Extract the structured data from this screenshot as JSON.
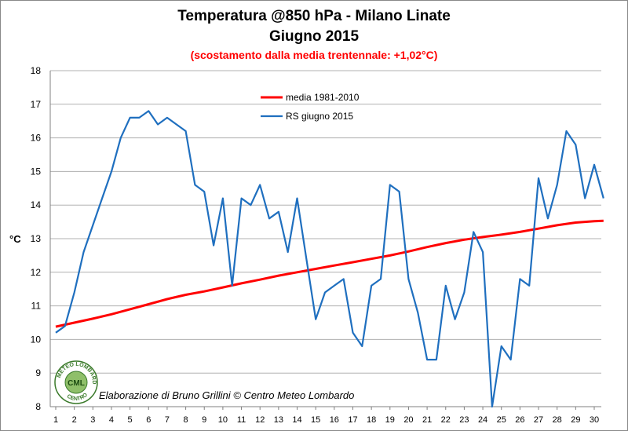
{
  "title_line1": "Temperatura @850 hPa - Milano Linate",
  "title_line2": "Giugno 2015",
  "subtitle": "(scostamento dalla media trentennale: +1,02°C)",
  "credit": "Elaborazione di Bruno Grillini  © Centro Meteo Lombardo",
  "logo_text_top": "METEO LOMBARDO",
  "logo_text_bottom": "CENTRO",
  "logo_text_center": "CML",
  "colors": {
    "media": "#ff0000",
    "rs": "#1f6fbf",
    "subtitle": "#ff0000"
  },
  "chart_data": {
    "type": "line",
    "title": "Temperatura @850 hPa - Milano Linate",
    "subtitle": "Giugno 2015",
    "xlabel": "",
    "ylabel": "°C",
    "ylim": [
      8,
      18
    ],
    "yticks": [
      8,
      9,
      10,
      11,
      12,
      13,
      14,
      15,
      16,
      17,
      18
    ],
    "xlim": [
      1,
      30.5
    ],
    "xticks": [
      1,
      2,
      3,
      4,
      5,
      6,
      7,
      8,
      9,
      10,
      11,
      12,
      13,
      14,
      15,
      16,
      17,
      18,
      19,
      20,
      21,
      22,
      23,
      24,
      25,
      26,
      27,
      28,
      29,
      30
    ],
    "grid": "horizontal",
    "legend_position": "top-center",
    "series": [
      {
        "name": "media 1981-2010",
        "color": "#ff0000",
        "x": [
          1,
          2,
          3,
          4,
          5,
          6,
          7,
          8,
          9,
          10,
          11,
          12,
          13,
          14,
          15,
          16,
          17,
          18,
          19,
          20,
          21,
          22,
          23,
          24,
          25,
          26,
          27,
          28,
          29,
          30,
          30.5
        ],
        "y": [
          10.38,
          10.5,
          10.62,
          10.75,
          10.9,
          11.05,
          11.2,
          11.33,
          11.43,
          11.55,
          11.67,
          11.78,
          11.9,
          12.0,
          12.1,
          12.2,
          12.3,
          12.4,
          12.5,
          12.62,
          12.75,
          12.87,
          12.97,
          13.05,
          13.12,
          13.2,
          13.3,
          13.4,
          13.48,
          13.52,
          13.53
        ]
      },
      {
        "name": "RS giugno 2015",
        "color": "#1f6fbf",
        "x": [
          1,
          1.5,
          2,
          2.5,
          3,
          3.5,
          4,
          4.5,
          5,
          5.5,
          6,
          6.5,
          7,
          7.5,
          8,
          8.5,
          9,
          9.5,
          10,
          10.5,
          11,
          11.5,
          12,
          12.5,
          13,
          13.5,
          14,
          14.5,
          15,
          15.5,
          16,
          16.5,
          17,
          17.5,
          18,
          18.5,
          19,
          19.5,
          20,
          20.5,
          21,
          21.5,
          22,
          22.5,
          23,
          23.5,
          24,
          24.5,
          25,
          25.5,
          26,
          26.5,
          27,
          27.5,
          28,
          28.5,
          29,
          29.5,
          30,
          30.5
        ],
        "y": [
          10.2,
          10.4,
          11.4,
          12.6,
          13.4,
          14.2,
          15.0,
          16.0,
          16.6,
          16.6,
          16.8,
          16.4,
          16.6,
          16.4,
          16.2,
          14.6,
          14.4,
          12.8,
          14.2,
          11.6,
          14.2,
          14.0,
          14.6,
          13.6,
          13.8,
          12.6,
          14.2,
          12.4,
          10.6,
          11.4,
          11.6,
          11.8,
          10.2,
          9.8,
          11.6,
          11.8,
          14.6,
          14.4,
          11.8,
          10.8,
          9.4,
          9.4,
          11.6,
          10.6,
          11.4,
          13.2,
          12.6,
          8.0,
          9.8,
          9.4,
          11.8,
          11.6,
          14.8,
          13.6,
          14.6,
          16.2,
          15.8,
          14.2,
          15.2,
          14.2
        ]
      }
    ]
  }
}
